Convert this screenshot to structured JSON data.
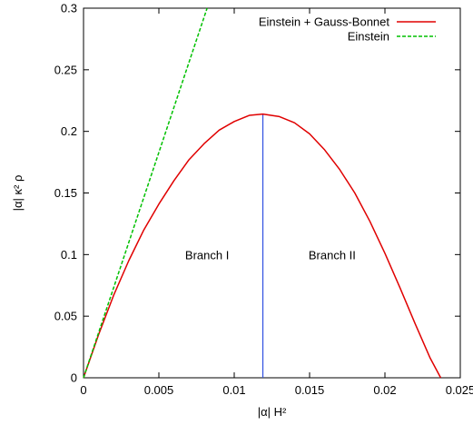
{
  "chart_data": {
    "type": "line",
    "title": "",
    "xlabel": "|α| H²",
    "ylabel": "|α| κ² ρ",
    "xlim": [
      0,
      0.025
    ],
    "ylim": [
      0,
      0.3
    ],
    "x_ticks": [
      "0",
      "0.005",
      "0.01",
      "0.015",
      "0.02",
      "0.025"
    ],
    "y_ticks": [
      "0",
      "0.05",
      "0.1",
      "0.15",
      "0.2",
      "0.25",
      "0.3"
    ],
    "grid": false,
    "legend_position": "top-right",
    "series": [
      {
        "name": "Einstein + Gauss-Bonnet",
        "color": "#e00000",
        "style": "solid",
        "x": [
          0,
          0.001,
          0.002,
          0.003,
          0.004,
          0.005,
          0.006,
          0.007,
          0.008,
          0.009,
          0.01,
          0.011,
          0.0119,
          0.013,
          0.014,
          0.015,
          0.016,
          0.017,
          0.018,
          0.019,
          0.02,
          0.021,
          0.022,
          0.023,
          0.0237
        ],
        "y": [
          0,
          0.035,
          0.067,
          0.095,
          0.12,
          0.141,
          0.16,
          0.177,
          0.19,
          0.201,
          0.208,
          0.213,
          0.214,
          0.212,
          0.207,
          0.198,
          0.185,
          0.169,
          0.15,
          0.127,
          0.101,
          0.073,
          0.044,
          0.016,
          0
        ]
      },
      {
        "name": "Einstein",
        "color": "#00c000",
        "style": "dashed",
        "x": [
          0,
          0.0082
        ],
        "y": [
          0,
          0.3
        ]
      }
    ],
    "annotations": [
      {
        "text": "Branch I",
        "x": 0.0082,
        "y": 0.1
      },
      {
        "text": "Branch II",
        "x": 0.0165,
        "y": 0.1
      }
    ],
    "vertical_lines": [
      {
        "x": 0.0119,
        "y_from": 0,
        "y_to": 0.214,
        "color": "#3050e0"
      }
    ]
  }
}
